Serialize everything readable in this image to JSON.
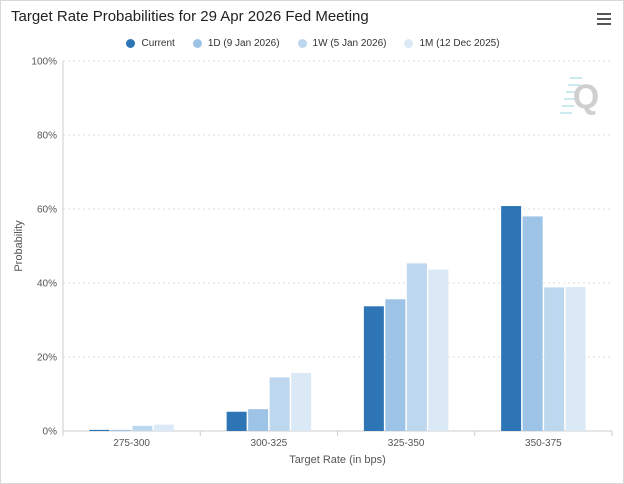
{
  "title": "Target Rate Probabilities for 29 Apr 2026 Fed Meeting",
  "menu_icon": "hamburger-menu-icon",
  "watermark_text": "Q",
  "chart_data": {
    "type": "bar",
    "title": "Target Rate Probabilities for 29 Apr 2026 Fed Meeting",
    "xlabel": "Target Rate (in bps)",
    "ylabel": "Probability",
    "ylim": [
      0,
      100
    ],
    "yticks": [
      "0%",
      "20%",
      "40%",
      "60%",
      "80%",
      "100%"
    ],
    "categories": [
      "275-300",
      "300-325",
      "325-350",
      "350-375"
    ],
    "legend_position": "top-center",
    "grid": true,
    "series": [
      {
        "name": "Current",
        "color": "#2e75b6",
        "values": [
          0.3,
          5.2,
          33.7,
          60.8
        ]
      },
      {
        "name": "1D (9 Jan 2026)",
        "color": "#9dc3e6",
        "values": [
          0.3,
          5.9,
          35.6,
          58.0
        ]
      },
      {
        "name": "1W (5 Jan 2026)",
        "color": "#bdd7ee",
        "values": [
          1.4,
          14.5,
          45.3,
          38.8
        ]
      },
      {
        "name": "1M (12 Dec 2025)",
        "color": "#dbe9f6",
        "values": [
          1.7,
          15.7,
          43.6,
          38.9
        ]
      }
    ]
  }
}
